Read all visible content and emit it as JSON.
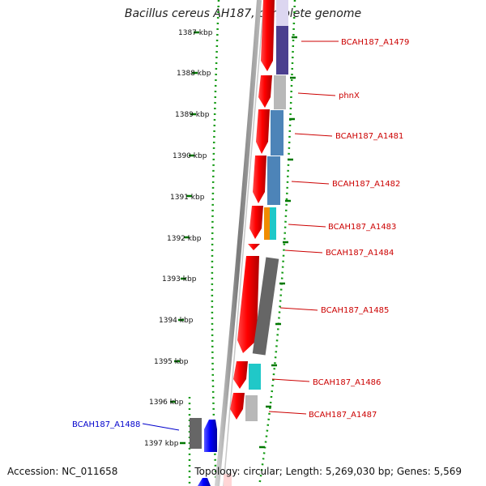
{
  "title": "Bacillus cereus AH187, complete genome",
  "footer": {
    "accession": "Accession: NC_011658",
    "summary": "Topology: circular; Length: 5,269,030 bp; Genes: 5,569"
  },
  "ticks": [
    "1387 kbp",
    "1388 kbp",
    "1389 kbp",
    "1390 kbp",
    "1391 kbp",
    "1392 kbp",
    "1393 kbp",
    "1394 kbp",
    "1395 kbp",
    "1396 kbp",
    "1397 kbp"
  ],
  "genes": [
    {
      "label": "BCAH187_A1479",
      "strand": "+",
      "color": "#4b3f8f",
      "label_color": "#cc0000"
    },
    {
      "label": "phnX",
      "strand": "+",
      "color": "#b8b8b8",
      "label_color": "#cc0000"
    },
    {
      "label": "BCAH187_A1481",
      "strand": "+",
      "color": "#4d84b8",
      "label_color": "#cc0000"
    },
    {
      "label": "BCAH187_A1482",
      "strand": "+",
      "color": "#4d84b8",
      "label_color": "#cc0000"
    },
    {
      "label": "BCAH187_A1483",
      "strand": "+",
      "color": "#f08c00",
      "color2": "#1ec8c8",
      "label_color": "#cc0000"
    },
    {
      "label": "BCAH187_A1484",
      "strand": "+",
      "color": "#e60000",
      "label_color": "#cc0000"
    },
    {
      "label": "BCAH187_A1485",
      "strand": "+",
      "color": "#666666",
      "label_color": "#cc0000"
    },
    {
      "label": "BCAH187_A1486",
      "strand": "+",
      "color": "#20c8c8",
      "label_color": "#cc0000"
    },
    {
      "label": "BCAH187_A1487",
      "strand": "+",
      "color": "#b8b8b8",
      "label_color": "#cc0000"
    },
    {
      "label": "BCAH187_A1488",
      "strand": "-",
      "color": "#1010e0",
      "label_color": "#0000cc"
    }
  ],
  "colors": {
    "forward_strand": "#ff0000",
    "reverse_strand": "#0000ff",
    "backbone": "#808080",
    "tick": "#007700"
  }
}
